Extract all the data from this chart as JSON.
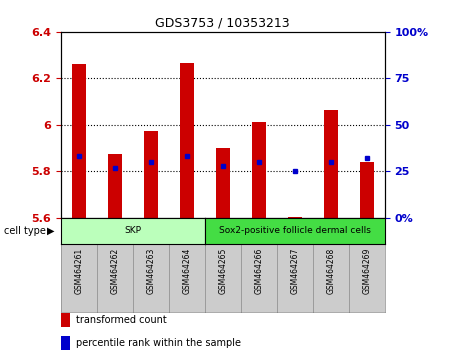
{
  "title": "GDS3753 / 10353213",
  "samples": [
    "GSM464261",
    "GSM464262",
    "GSM464263",
    "GSM464264",
    "GSM464265",
    "GSM464266",
    "GSM464267",
    "GSM464268",
    "GSM464269"
  ],
  "transformed_count": [
    6.26,
    5.875,
    5.975,
    6.265,
    5.9,
    6.01,
    5.605,
    6.065,
    5.84
  ],
  "percentile_rank": [
    33,
    27,
    30,
    33,
    28,
    30,
    25,
    30,
    32
  ],
  "ylim_left": [
    5.6,
    6.4
  ],
  "ylim_right": [
    0,
    100
  ],
  "yticks_left": [
    5.6,
    5.8,
    6.0,
    6.2,
    6.4
  ],
  "yticks_right": [
    0,
    25,
    50,
    75,
    100
  ],
  "ytick_labels_right": [
    "0%",
    "25",
    "50",
    "75",
    "100%"
  ],
  "bar_bottom": 5.6,
  "bar_color": "#cc0000",
  "dot_color": "#0000cc",
  "bar_width": 0.4,
  "cell_type_groups": [
    {
      "label": "SKP",
      "start": 0,
      "end": 4,
      "color": "#bbffbb"
    },
    {
      "label": "Sox2-positive follicle dermal cells",
      "start": 4,
      "end": 9,
      "color": "#44dd44"
    }
  ],
  "legend_items": [
    {
      "label": "transformed count",
      "color": "#cc0000"
    },
    {
      "label": "percentile rank within the sample",
      "color": "#0000cc"
    }
  ],
  "cell_type_label": "cell type",
  "background_color": "#ffffff",
  "left_tick_color": "#cc0000",
  "right_tick_color": "#0000cc",
  "grid_yticks": [
    5.8,
    6.0,
    6.2
  ],
  "sample_box_color": "#cccccc",
  "sample_box_edge_color": "#888888"
}
